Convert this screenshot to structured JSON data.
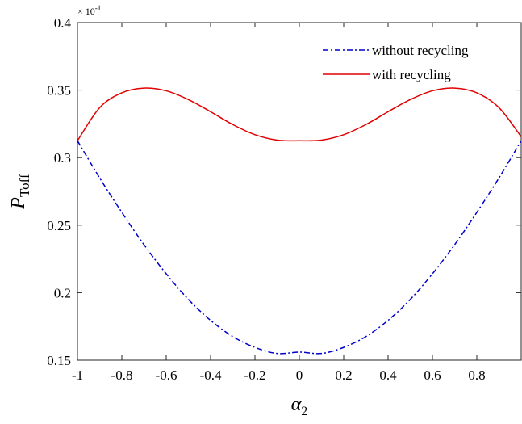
{
  "chart_data": {
    "type": "line",
    "title": "",
    "xlabel": "α",
    "xlabel_subscript": "2",
    "ylabel": "P",
    "ylabel_subscript": "Toff",
    "y_exponent_base": "× 10",
    "y_exponent_power": "-1",
    "xlim": [
      -1,
      1
    ],
    "ylim": [
      0.15,
      0.4
    ],
    "x_ticks": [
      -1,
      -0.8,
      -0.6,
      -0.4,
      -0.2,
      0,
      0.2,
      0.4,
      0.6,
      0.8
    ],
    "x_tick_labels": [
      "-1",
      "-0.8",
      "-0.6",
      "-0.4",
      "-0.2",
      "0",
      "0.2",
      "0.4",
      "0.6",
      "0.8"
    ],
    "y_ticks": [
      0.15,
      0.2,
      0.25,
      0.3,
      0.35,
      0.4
    ],
    "y_tick_labels": [
      "0.15",
      "0.2",
      "0.25",
      "0.3",
      "0.35",
      "0.4"
    ],
    "grid": false,
    "legend_position": "top-right",
    "x": [
      -1,
      -0.9,
      -0.8,
      -0.7,
      -0.6,
      -0.5,
      -0.4,
      -0.3,
      -0.2,
      -0.1,
      0,
      0.1,
      0.2,
      0.3,
      0.4,
      0.5,
      0.6,
      0.7,
      0.8,
      0.9,
      1
    ],
    "series": [
      {
        "name": "without recycling",
        "color": "#0000cc",
        "dash": "dash-dot",
        "values": [
          0.3125,
          0.285,
          0.2595,
          0.2355,
          0.214,
          0.195,
          0.1795,
          0.1675,
          0.1595,
          0.155,
          0.156,
          0.155,
          0.1595,
          0.1675,
          0.1795,
          0.195,
          0.214,
          0.2355,
          0.2595,
          0.285,
          0.3125
        ]
      },
      {
        "name": "with recycling",
        "color": "#e00000",
        "dash": "solid",
        "values": [
          0.3125,
          0.337,
          0.348,
          0.3515,
          0.3495,
          0.343,
          0.334,
          0.3245,
          0.317,
          0.313,
          0.3125,
          0.313,
          0.317,
          0.3245,
          0.334,
          0.343,
          0.3495,
          0.3515,
          0.348,
          0.337,
          0.3155
        ]
      }
    ]
  }
}
